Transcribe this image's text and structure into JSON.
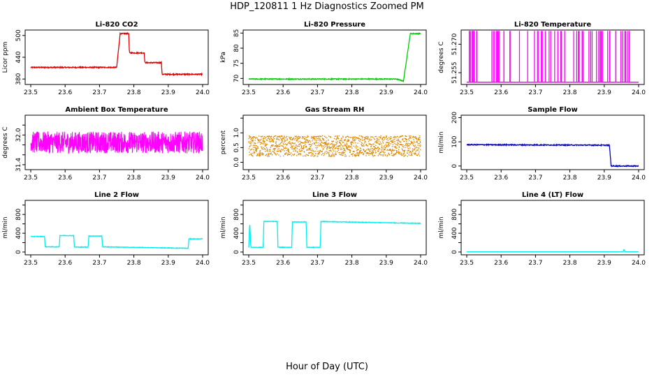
{
  "figure": {
    "title": "HDP_120811  1 Hz Diagnostics Zoomed PM",
    "xlabel": "Hour of Day (UTC)"
  },
  "chart_data": [
    {
      "type": "line",
      "title": "Li-820 CO2",
      "ylabel": "Licor ppm",
      "color": "#dd0000",
      "xlim": [
        23.5,
        24.0
      ],
      "ylim": [
        365,
        515
      ],
      "xticks": [
        "23.5",
        "23.6",
        "23.7",
        "23.8",
        "23.9",
        "24.0"
      ],
      "yticks": [
        380,
        440,
        500
      ],
      "ytick_labels": [
        "380",
        "440",
        "500"
      ],
      "noise": 1.5,
      "segments": [
        [
          23.5,
          23.75,
          412,
          412
        ],
        [
          23.75,
          23.76,
          412,
          505
        ],
        [
          23.76,
          23.785,
          505,
          505
        ],
        [
          23.785,
          23.787,
          505,
          452
        ],
        [
          23.787,
          23.83,
          452,
          452
        ],
        [
          23.83,
          23.832,
          452,
          425
        ],
        [
          23.832,
          23.88,
          425,
          425
        ],
        [
          23.88,
          23.882,
          425,
          393
        ],
        [
          23.882,
          24.0,
          393,
          393
        ]
      ]
    },
    {
      "type": "line",
      "title": "Li-820 Pressure",
      "ylabel": "kPa",
      "color": "#00cc00",
      "xlim": [
        23.5,
        24.0
      ],
      "ylim": [
        68,
        86
      ],
      "xticks": [
        "23.5",
        "23.6",
        "23.7",
        "23.8",
        "23.9",
        "24.0"
      ],
      "yticks": [
        70,
        75,
        80,
        85
      ],
      "ytick_labels": [
        "70",
        "75",
        "80",
        "85"
      ],
      "noise": 0.15,
      "segments": [
        [
          23.5,
          23.93,
          69.8,
          69.8
        ],
        [
          23.93,
          23.95,
          69.8,
          69.1
        ],
        [
          23.95,
          23.97,
          69.1,
          84.8
        ],
        [
          23.97,
          24.0,
          84.8,
          84.8
        ]
      ]
    },
    {
      "type": "toggle",
      "title": "Li-820 Temperature",
      "ylabel": "degrees C",
      "color": "#ff00ff",
      "xlim": [
        23.5,
        24.0
      ],
      "ylim": [
        51.2488,
        51.2775
      ],
      "xticks": [
        "23.5",
        "23.6",
        "23.7",
        "23.8",
        "23.9",
        "24.0"
      ],
      "yticks": [
        51.255,
        51.27
      ],
      "ytick_labels": [
        "51.255",
        "51.270"
      ],
      "levels": [
        51.25,
        51.277
      ],
      "count": 70
    },
    {
      "type": "line",
      "title": "Ambient Box Temperature",
      "ylabel": "degrees C",
      "color": "#ff00ff",
      "xlim": [
        23.5,
        24.0
      ],
      "ylim": [
        31.3,
        32.4
      ],
      "xticks": [
        "23.5",
        "23.6",
        "23.7",
        "23.8",
        "23.9",
        "24.0"
      ],
      "yticks": [
        31.4,
        31.6,
        31.8,
        32.0,
        32.2
      ],
      "ytick_labels": [
        "31.4",
        "",
        "",
        "32.0",
        ""
      ],
      "noise": 0.22,
      "dense": 900,
      "segments": [
        [
          23.5,
          24.0,
          31.85,
          31.85
        ]
      ]
    },
    {
      "type": "scatter",
      "title": "Gas Stream RH",
      "ylabel": "percent",
      "color": "#dd8800",
      "xlim": [
        23.5,
        24.0
      ],
      "ylim": [
        -0.25,
        1.6
      ],
      "xticks": [
        "23.5",
        "23.6",
        "23.7",
        "23.8",
        "23.9",
        "24.0"
      ],
      "yticks": [
        0.0,
        0.5,
        1.0,
        1.5
      ],
      "ytick_labels": [
        "0.0",
        "0.5",
        "1.0",
        ""
      ],
      "noise": 0.35,
      "dense": 1400,
      "segments": [
        [
          23.5,
          24.0,
          0.55,
          0.55
        ]
      ]
    },
    {
      "type": "line",
      "title": "Sample Flow",
      "ylabel": "ml/min",
      "color": "#0000cc",
      "xlim": [
        23.5,
        24.0
      ],
      "ylim": [
        -15,
        210
      ],
      "xticks": [
        "23.5",
        "23.6",
        "23.7",
        "23.8",
        "23.9",
        "24.0"
      ],
      "yticks": [
        0,
        100,
        200
      ],
      "ytick_labels": [
        "0",
        "100",
        "200"
      ],
      "noise": 2,
      "segments": [
        [
          23.5,
          23.915,
          88,
          86
        ],
        [
          23.915,
          23.92,
          86,
          0
        ],
        [
          23.92,
          24.0,
          0,
          0
        ]
      ]
    },
    {
      "type": "line",
      "title": "Line 2 Flow",
      "ylabel": "ml/min",
      "color": "#00eeee",
      "xlim": [
        23.5,
        24.0
      ],
      "ylim": [
        -60,
        1100
      ],
      "xticks": [
        "23.5",
        "23.6",
        "23.7",
        "23.8",
        "23.9",
        "24.0"
      ],
      "yticks": [
        0,
        200,
        400,
        600,
        800,
        1000
      ],
      "ytick_labels": [
        "0",
        "",
        "400",
        "",
        "800",
        ""
      ],
      "noise": 6,
      "segments": [
        [
          23.5,
          23.54,
          330,
          330
        ],
        [
          23.54,
          23.542,
          330,
          110
        ],
        [
          23.542,
          23.583,
          110,
          110
        ],
        [
          23.583,
          23.585,
          110,
          350
        ],
        [
          23.585,
          23.625,
          350,
          350
        ],
        [
          23.625,
          23.627,
          350,
          105
        ],
        [
          23.627,
          23.667,
          105,
          105
        ],
        [
          23.667,
          23.669,
          105,
          340
        ],
        [
          23.669,
          23.707,
          340,
          340
        ],
        [
          23.707,
          23.709,
          340,
          110
        ],
        [
          23.709,
          23.958,
          110,
          80
        ],
        [
          23.958,
          23.96,
          80,
          280
        ],
        [
          23.96,
          24.0,
          280,
          280
        ]
      ]
    },
    {
      "type": "line",
      "title": "Line 3 Flow",
      "ylabel": "ml/min",
      "color": "#00eeee",
      "xlim": [
        23.5,
        24.0
      ],
      "ylim": [
        -60,
        1100
      ],
      "xticks": [
        "23.5",
        "23.6",
        "23.7",
        "23.8",
        "23.9",
        "24.0"
      ],
      "yticks": [
        0,
        200,
        400,
        600,
        800,
        1000
      ],
      "ytick_labels": [
        "0",
        "",
        "400",
        "",
        "800",
        ""
      ],
      "noise": 6,
      "segments": [
        [
          23.5,
          23.503,
          100,
          640
        ],
        [
          23.503,
          23.506,
          640,
          100
        ],
        [
          23.506,
          23.542,
          100,
          100
        ],
        [
          23.542,
          23.544,
          100,
          650
        ],
        [
          23.544,
          23.583,
          650,
          650
        ],
        [
          23.583,
          23.585,
          650,
          100
        ],
        [
          23.585,
          23.625,
          100,
          100
        ],
        [
          23.625,
          23.627,
          100,
          640
        ],
        [
          23.627,
          23.667,
          640,
          640
        ],
        [
          23.667,
          23.669,
          640,
          100
        ],
        [
          23.669,
          23.708,
          100,
          100
        ],
        [
          23.708,
          23.71,
          100,
          650
        ],
        [
          23.71,
          24.0,
          650,
          610
        ]
      ]
    },
    {
      "type": "line",
      "title": "Line 4 (LT) Flow",
      "ylabel": "ml/min",
      "color": "#00eeee",
      "xlim": [
        23.5,
        24.0
      ],
      "ylim": [
        -60,
        1100
      ],
      "xticks": [
        "23.5",
        "23.6",
        "23.7",
        "23.8",
        "23.9",
        "24.0"
      ],
      "yticks": [
        0,
        200,
        400,
        600,
        800,
        1000
      ],
      "ytick_labels": [
        "0",
        "",
        "400",
        "",
        "800",
        ""
      ],
      "noise": 0,
      "segments": [
        [
          23.5,
          23.955,
          5,
          5
        ],
        [
          23.955,
          23.958,
          5,
          60
        ],
        [
          23.958,
          23.96,
          60,
          5
        ],
        [
          23.96,
          24.0,
          5,
          5
        ]
      ]
    }
  ]
}
